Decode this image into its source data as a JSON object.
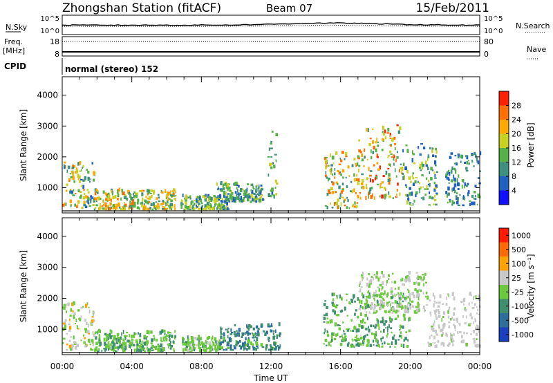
{
  "header": {
    "station": "Zhongshan Station (fitACF)",
    "beam": "Beam 07",
    "date": "15/Feb/2011"
  },
  "strip": {
    "nsky_label": "N.Sky",
    "nsky_ticks": [
      "10^5",
      "10^0"
    ],
    "nsearch_label": "N.Search",
    "nsearch_ticks": [
      "10^5",
      "10^0"
    ],
    "freq_label": "Freq.",
    "freq_unit": "[MHz]",
    "freq_ticks": [
      "18",
      "8"
    ],
    "nave_label": "Nave",
    "nave_ticks": [
      "80",
      "0"
    ],
    "cpid_label": "CPID",
    "cpid_text": "normal (stereo) 152"
  },
  "axes": {
    "ylabel": "Slant Range [km]",
    "xlabel": "Time UT",
    "yticks": [
      "1000",
      "2000",
      "3000",
      "4000"
    ],
    "xticks": [
      "00:00",
      "04:00",
      "08:00",
      "12:00",
      "16:00",
      "20:00",
      "00:00"
    ]
  },
  "colorbars": {
    "power": {
      "label": "Power [dB]",
      "ticks": [
        "4",
        "8",
        "12",
        "16",
        "20",
        "24",
        "28"
      ],
      "colors": [
        "#1010ff",
        "#2060c0",
        "#3f8f7f",
        "#55b045",
        "#c8d020",
        "#ffa800",
        "#ff7000",
        "#ff2000"
      ]
    },
    "velocity": {
      "label": "Velocity [m s⁻¹]",
      "ticks": [
        "1000",
        "500",
        "100",
        "25",
        "-25",
        "-100",
        "-500",
        "-1000"
      ],
      "colors": [
        "#1a3fbf",
        "#2d6f9a",
        "#3f8f6f",
        "#6cc83c",
        "#c8c8c8",
        "#ffa200",
        "#ff6a00",
        "#ff1a00"
      ]
    }
  },
  "chart_data": [
    {
      "type": "heatmap",
      "name": "Power",
      "x_range": [
        "00:00",
        "24:00"
      ],
      "ylim": [
        180,
        4600
      ],
      "ylabel": "Slant Range [km]",
      "xlabel": "Time UT",
      "zlim": [
        0,
        32
      ],
      "z_label": "Power [dB]",
      "regions": [
        {
          "t": [
            0.0,
            1.8
          ],
          "r": [
            300,
            1800
          ],
          "z": [
            6,
            26
          ]
        },
        {
          "t": [
            1.8,
            6.5
          ],
          "r": [
            250,
            900
          ],
          "z": [
            8,
            26
          ]
        },
        {
          "t": [
            6.8,
            9.5
          ],
          "r": [
            250,
            700
          ],
          "z": [
            6,
            20
          ]
        },
        {
          "t": [
            8.8,
            11.5
          ],
          "r": [
            500,
            1100
          ],
          "z": [
            6,
            18
          ]
        },
        {
          "t": [
            11.8,
            12.3
          ],
          "r": [
            600,
            2900
          ],
          "z": [
            6,
            18
          ]
        },
        {
          "t": [
            15.0,
            17.0
          ],
          "r": [
            300,
            2100
          ],
          "z": [
            8,
            28
          ]
        },
        {
          "t": [
            17.0,
            19.5
          ],
          "r": [
            600,
            3000
          ],
          "z": [
            10,
            30
          ]
        },
        {
          "t": [
            19.5,
            21.5
          ],
          "r": [
            400,
            2400
          ],
          "z": [
            6,
            20
          ]
        },
        {
          "t": [
            22.0,
            24.0
          ],
          "r": [
            400,
            2100
          ],
          "z": [
            4,
            16
          ]
        }
      ]
    },
    {
      "type": "heatmap",
      "name": "Velocity",
      "x_range": [
        "00:00",
        "24:00"
      ],
      "ylim": [
        180,
        4600
      ],
      "ylabel": "Slant Range [km]",
      "xlabel": "Time UT",
      "zlim": [
        -1000,
        1000
      ],
      "z_label": "Velocity [m s⁻¹]",
      "regions": [
        {
          "t": [
            0.0,
            1.8
          ],
          "r": [
            300,
            1800
          ],
          "z": [
            -200,
            300
          ]
        },
        {
          "t": [
            1.8,
            6.5
          ],
          "r": [
            250,
            900
          ],
          "z": [
            -400,
            -50
          ]
        },
        {
          "t": [
            6.8,
            9.0
          ],
          "r": [
            250,
            700
          ],
          "z": [
            -300,
            50
          ]
        },
        {
          "t": [
            9.0,
            12.5
          ],
          "r": [
            300,
            1100
          ],
          "z": [
            -700,
            -200
          ]
        },
        {
          "t": [
            15.0,
            20.0
          ],
          "r": [
            400,
            2100
          ],
          "z": [
            -400,
            -100
          ]
        },
        {
          "t": [
            17.0,
            21.0
          ],
          "r": [
            1500,
            2800
          ],
          "z": [
            -30,
            30
          ]
        },
        {
          "t": [
            21.0,
            24.0
          ],
          "r": [
            400,
            2100
          ],
          "z": [
            -30,
            200
          ]
        }
      ]
    }
  ]
}
